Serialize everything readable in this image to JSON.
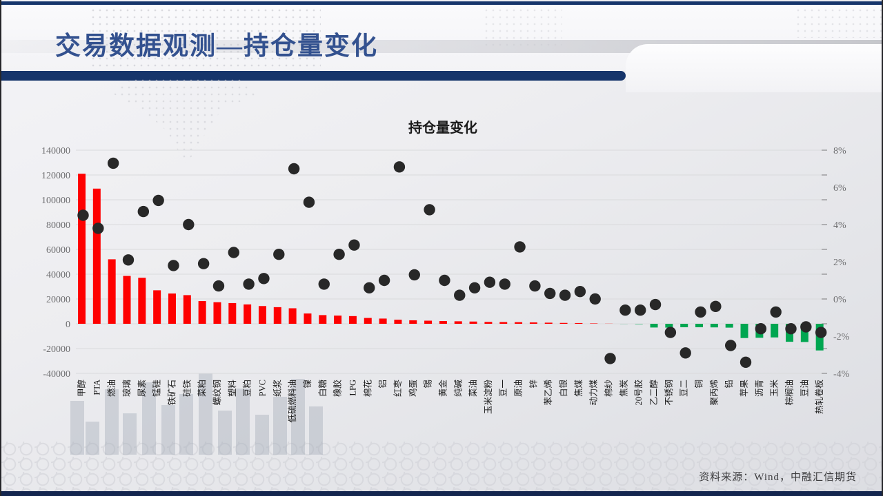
{
  "slide": {
    "title": "交易数据观测—持仓量变化",
    "source_note": "资料来源：Wind，中融汇信期货"
  },
  "colors": {
    "title_blue": "#33518F",
    "divider_navy": "#16356B",
    "bar_positive": "#FE0000",
    "bar_negative": "#00A651",
    "scatter_dot": "#282828",
    "gridline": "#D9DADC",
    "axis_tick": "#8A8A8C",
    "axis_text": "#6E6E70",
    "category_text": "#1A1A1A",
    "chart_title_text": "#1A1A1A"
  },
  "chart_data": {
    "type": "combo",
    "title": "持仓量变化",
    "grid": true,
    "legend": "none",
    "categories": [
      "甲醇",
      "PTA",
      "燃油",
      "玻璃",
      "尿素",
      "锰硅",
      "铁矿石",
      "硅铁",
      "菜粕",
      "螺纹钢",
      "塑料",
      "豆粕",
      "PVC",
      "纸浆",
      "低硫燃料油",
      "镍",
      "白糖",
      "橡胶",
      "LPG",
      "棉花",
      "铝",
      "红枣",
      "鸡蛋",
      "锡",
      "黄金",
      "纯碱",
      "菜油",
      "玉米淀粉",
      "豆一",
      "原油",
      "锌",
      "苯乙烯",
      "白银",
      "焦煤",
      "动力煤",
      "棉纱",
      "焦炭",
      "20号胶",
      "乙二醇",
      "不锈钢",
      "豆二",
      "铜",
      "聚丙烯",
      "铅",
      "苹果",
      "沥青",
      "玉米",
      "棕榈油",
      "豆油",
      "热轧卷板"
    ],
    "series": [
      {
        "id": "bars",
        "type": "bar",
        "axis": "left",
        "values": [
          121000,
          109000,
          52000,
          38600,
          37100,
          27000,
          24400,
          23100,
          18300,
          17400,
          16700,
          15600,
          14300,
          13400,
          12500,
          8300,
          7000,
          6600,
          6200,
          4700,
          4200,
          3300,
          2800,
          2500,
          2200,
          2000,
          1800,
          1500,
          1400,
          1300,
          1100,
          900,
          700,
          600,
          300,
          100,
          -100,
          -300,
          -3000,
          -3100,
          -2800,
          -2800,
          -2900,
          -3100,
          -11500,
          -11300,
          -11000,
          -14500,
          -14700,
          -21500
        ]
      },
      {
        "id": "dots",
        "type": "scatter",
        "axis": "right",
        "values": [
          4.5,
          3.8,
          7.3,
          2.1,
          4.7,
          5.3,
          1.8,
          4.0,
          1.9,
          0.7,
          2.5,
          0.8,
          1.1,
          2.4,
          7.0,
          5.2,
          0.8,
          2.4,
          2.9,
          0.6,
          1.0,
          7.1,
          1.3,
          4.8,
          1.0,
          0.2,
          0.6,
          0.9,
          0.8,
          2.8,
          0.7,
          0.3,
          0.2,
          0.4,
          0.0,
          -3.2,
          -0.6,
          -0.6,
          -0.3,
          -1.8,
          -2.9,
          -0.7,
          -0.4,
          -2.5,
          -3.4,
          -1.6,
          -0.7,
          -1.6,
          -1.5,
          -1.8
        ]
      }
    ],
    "left_axis": {
      "min": -40000,
      "max": 140000,
      "step": 20000,
      "tick_labels": [
        "140000",
        "120000",
        "100000",
        "80000",
        "60000",
        "40000",
        "20000",
        "0",
        "-20000",
        "-40000"
      ]
    },
    "right_axis": {
      "min": -4,
      "max": 8,
      "label_step": 2,
      "tick_labels": [
        "8%",
        "6%",
        "4%",
        "2%",
        "0%",
        "-2%",
        "-4%"
      ]
    }
  }
}
